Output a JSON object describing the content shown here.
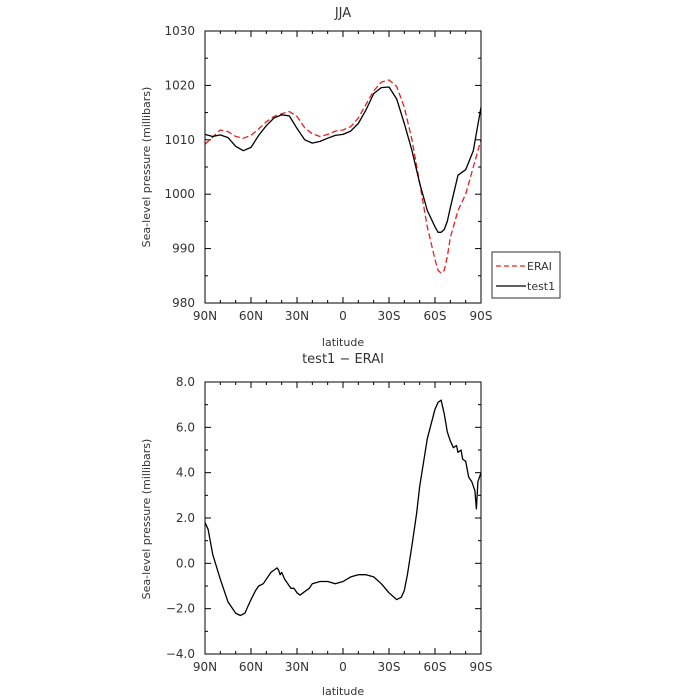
{
  "chart_data": [
    {
      "type": "line",
      "title": "JJA",
      "xlabel": "latitude",
      "ylabel": "Sea-level pressure (millibars)",
      "ylim": [
        980,
        1030
      ],
      "xlim": [
        -90,
        90
      ],
      "x_ticks": [
        -90,
        -60,
        -30,
        0,
        30,
        60,
        90
      ],
      "x_tick_labels": [
        "90N",
        "60N",
        "30N",
        "0",
        "30S",
        "60S",
        "90S"
      ],
      "y_ticks": [
        980,
        990,
        1000,
        1010,
        1020,
        1030
      ],
      "y_tick_labels": [
        "980",
        "990",
        "1000",
        "1010",
        "1020",
        "1030"
      ],
      "legend": {
        "placement": "right",
        "entries": [
          {
            "name": "ERAI",
            "color": "#e8201c",
            "dash": true
          },
          {
            "name": "test1",
            "color": "#000000",
            "dash": false
          }
        ]
      },
      "series": [
        {
          "name": "ERAI",
          "color": "#e8201c",
          "style": "dashed",
          "x": [
            -90,
            -85,
            -80,
            -75,
            -70,
            -65,
            -60,
            -55,
            -50,
            -45,
            -40,
            -35,
            -30,
            -25,
            -20,
            -15,
            -10,
            -5,
            0,
            5,
            10,
            15,
            20,
            25,
            30,
            35,
            40,
            45,
            50,
            55,
            60,
            62,
            64,
            66,
            68,
            70,
            75,
            80,
            85,
            90
          ],
          "y": [
            1009.2,
            1010.5,
            1011.8,
            1011.5,
            1010.6,
            1010.3,
            1010.8,
            1012.0,
            1013.3,
            1014.3,
            1014.8,
            1015.2,
            1014.3,
            1012.2,
            1011.1,
            1010.6,
            1011.0,
            1011.6,
            1011.8,
            1012.4,
            1014.0,
            1016.5,
            1019.0,
            1020.6,
            1021.0,
            1019.8,
            1016.0,
            1010.0,
            1002.0,
            994.0,
            988.0,
            986.0,
            985.5,
            986.0,
            988.5,
            992.0,
            997.0,
            1000.0,
            1005.0,
            1010.0
          ]
        },
        {
          "name": "test1",
          "color": "#000000",
          "style": "solid",
          "x": [
            -90,
            -85,
            -80,
            -75,
            -70,
            -65,
            -60,
            -55,
            -50,
            -45,
            -40,
            -35,
            -30,
            -25,
            -20,
            -15,
            -10,
            -5,
            0,
            5,
            10,
            15,
            20,
            25,
            30,
            35,
            40,
            45,
            50,
            55,
            60,
            62,
            64,
            66,
            68,
            70,
            75,
            80,
            85,
            90
          ],
          "y": [
            1011.0,
            1010.6,
            1010.9,
            1010.4,
            1008.8,
            1008.0,
            1008.6,
            1010.8,
            1012.6,
            1014.0,
            1014.6,
            1014.4,
            1012.1,
            1010.0,
            1009.4,
            1009.7,
            1010.3,
            1010.8,
            1011.0,
            1011.6,
            1013.0,
            1015.5,
            1018.5,
            1019.6,
            1019.7,
            1017.5,
            1013.0,
            1008.0,
            1002.0,
            997.0,
            994.0,
            993.0,
            993.0,
            993.5,
            995.0,
            997.5,
            1003.5,
            1004.5,
            1008.0,
            1016.0
          ]
        }
      ]
    },
    {
      "type": "line",
      "title": "test1 − ERAI",
      "xlabel": "latitude",
      "ylabel": "Sea-level pressure (millibars)",
      "ylim": [
        -4.0,
        8.0
      ],
      "xlim": [
        -90,
        90
      ],
      "x_ticks": [
        -90,
        -60,
        -30,
        0,
        30,
        60,
        90
      ],
      "x_tick_labels": [
        "90N",
        "60N",
        "30N",
        "0",
        "30S",
        "60S",
        "90S"
      ],
      "y_ticks": [
        -4,
        -2,
        0,
        2,
        4,
        6,
        8
      ],
      "y_tick_labels": [
        "−4.0",
        "−2.0",
        "0.0",
        "2.0",
        "4.0",
        "6.0",
        "8.0"
      ],
      "series": [
        {
          "name": "",
          "color": "#000000",
          "style": "solid",
          "x": [
            -90,
            -88,
            -85,
            -80,
            -75,
            -70,
            -67,
            -64,
            -62,
            -60,
            -57,
            -55,
            -52,
            -50,
            -47,
            -45,
            -43,
            -42,
            -41,
            -40,
            -38,
            -36,
            -34,
            -32,
            -30,
            -28,
            -26,
            -24,
            -22,
            -20,
            -15,
            -10,
            -5,
            0,
            5,
            10,
            15,
            20,
            25,
            30,
            35,
            38,
            40,
            42,
            45,
            48,
            50,
            55,
            60,
            62,
            64,
            66,
            68,
            70,
            72,
            74,
            75,
            77,
            78,
            80,
            82,
            84,
            86,
            87,
            88,
            90
          ],
          "y": [
            1.8,
            1.5,
            0.4,
            -0.7,
            -1.7,
            -2.2,
            -2.3,
            -2.2,
            -1.9,
            -1.6,
            -1.2,
            -1.0,
            -0.9,
            -0.7,
            -0.4,
            -0.3,
            -0.2,
            -0.3,
            -0.5,
            -0.4,
            -0.7,
            -0.9,
            -1.1,
            -1.1,
            -1.3,
            -1.4,
            -1.3,
            -1.2,
            -1.1,
            -0.9,
            -0.8,
            -0.8,
            -0.9,
            -0.8,
            -0.6,
            -0.5,
            -0.5,
            -0.6,
            -0.9,
            -1.3,
            -1.6,
            -1.5,
            -1.2,
            -0.5,
            0.8,
            2.2,
            3.4,
            5.5,
            6.8,
            7.1,
            7.2,
            6.6,
            5.8,
            5.4,
            5.1,
            5.2,
            4.9,
            5.0,
            4.6,
            4.5,
            3.8,
            3.6,
            3.2,
            2.4,
            3.6,
            4.0
          ]
        }
      ]
    }
  ]
}
